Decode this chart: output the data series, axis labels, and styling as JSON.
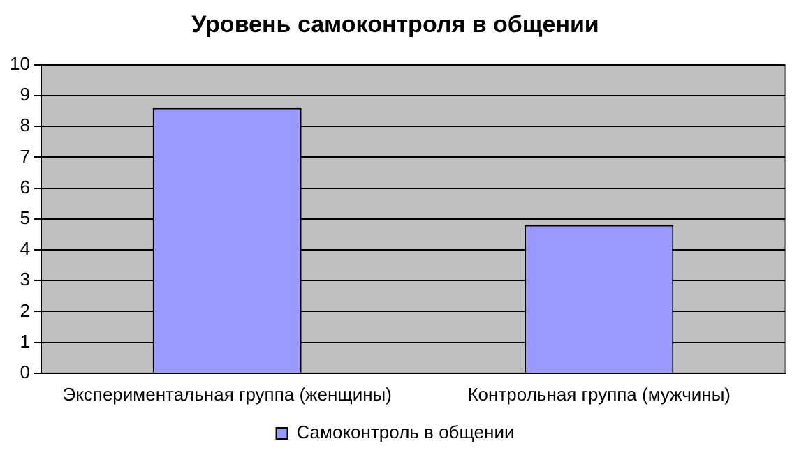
{
  "chart_data": {
    "type": "bar",
    "title": "Уровень самоконтроля в общении",
    "categories": [
      "Экспериментальная группа (женщины)",
      "Контрольная группа (мужчины)"
    ],
    "series": [
      {
        "name": "Самоконтроль в общении",
        "color": "#9999ff",
        "values": [
          8.6,
          4.8
        ]
      }
    ],
    "ylim": [
      0,
      10
    ],
    "yticks": [
      0,
      1,
      2,
      3,
      4,
      5,
      6,
      7,
      8,
      9,
      10
    ],
    "grid": "y",
    "legend": "bottom"
  }
}
